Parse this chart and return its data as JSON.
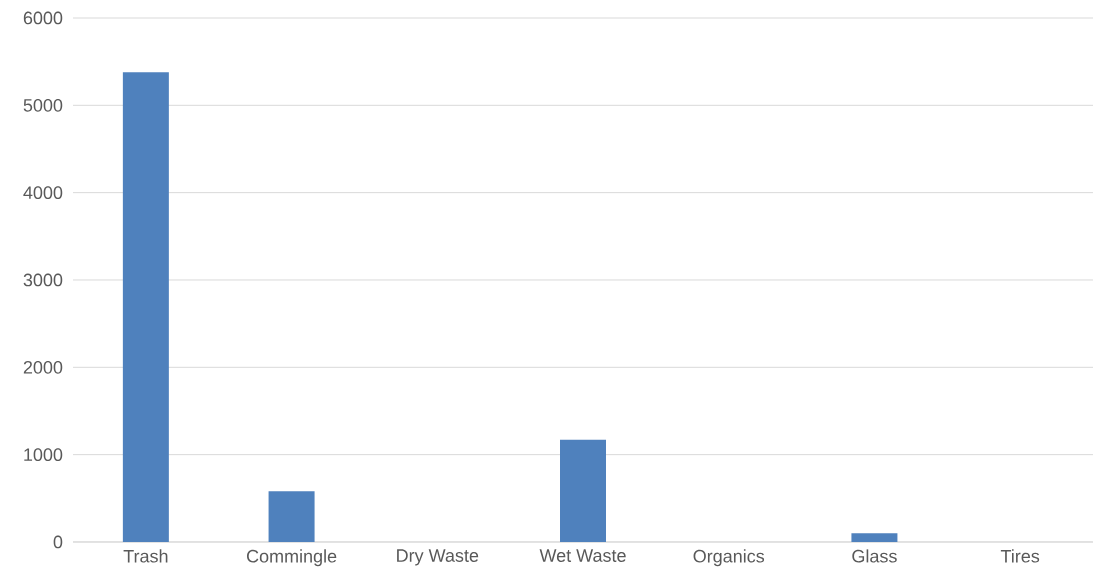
{
  "chart_data": {
    "type": "bar",
    "categories": [
      "Trash",
      "Commingle",
      "Dry Waste",
      "Wet Waste",
      "Organics",
      "Glass",
      "Tires"
    ],
    "values": [
      5380,
      580,
      0,
      1170,
      0,
      100,
      0
    ],
    "color": "#4f81bd",
    "ylim": [
      0,
      6000
    ],
    "yticks": [
      0,
      1000,
      2000,
      3000,
      4000,
      5000,
      6000
    ],
    "grid": "y"
  }
}
